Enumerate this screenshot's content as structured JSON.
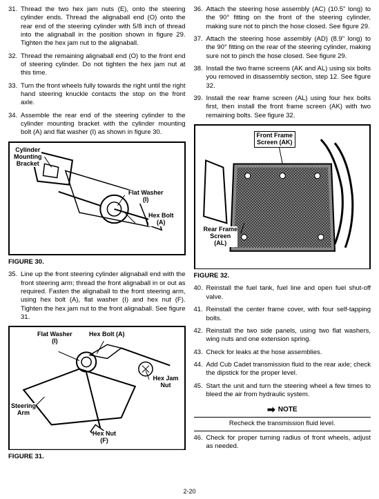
{
  "left": {
    "steps": [
      {
        "num": "31.",
        "text": "Thread the two hex jam nuts (E), onto the steering cylinder ends. Thread the alignaball end (O) onto the rear end of the steering cylinder with 5/8 inch of thread into the alignaball in the position shown in figure 29. Tighten the hex jam nut to the alignaball."
      },
      {
        "num": "32.",
        "text": "Thread the remaining alignaball end (O) to the front end of steering cylinder. Do not tighten the hex jam nut at this time."
      },
      {
        "num": "33.",
        "text": "Turn the front wheels fully towards the right until the right hand steering knuckle contacts the stop on the front axle."
      },
      {
        "num": "34.",
        "text": "Assemble the rear end of the steering cylinder to the cylinder mounting bracket with the cylinder mounting bolt (A) and flat washer (I) as shown in figure 30."
      }
    ],
    "fig30": {
      "caption": "FIGURE 30.",
      "lbl_cyl": "Cylinder\nMounting\nBracket",
      "lbl_washer": "Flat Washer\n(I)",
      "lbl_bolt": "Hex Bolt\n(A)"
    },
    "step35": {
      "num": "35.",
      "text": "Line up the front steering cylinder alignaball end with the front steering arm; thread the front alignaball in or out as required. Fasten the alignaball to the front steering arm, using hex bolt (A), flat washer (I) and hex nut (F). Tighten the hex jam nut to the front alignaball. See figure 31."
    },
    "fig31": {
      "caption": "FIGURE 31.",
      "lbl_washer": "Flat Washer\n(I)",
      "lbl_bolt": "Hex Bolt (A)",
      "lbl_jam": "Hex Jam\nNut",
      "lbl_arm": "Steering\nArm",
      "lbl_nut": "Hex Nut\n(F)"
    }
  },
  "right": {
    "steps_a": [
      {
        "num": "36.",
        "text": "Attach the steering hose assembly (AC) (10.5\" long) to the 90° fitting on the front of the steering cylinder, making sure not to pinch the hose closed. See figure 29."
      },
      {
        "num": "37.",
        "text": "Attach the steering hose assembly (AD) (8.9\" long) to the 90° fitting on the rear of the steering cylinder, making sure not to pinch the hose closed. See figure 29."
      },
      {
        "num": "38.",
        "text": "Install the two frame screens (AK and AL) using six bolts you removed in disassembly section, step 12. See figure 32."
      },
      {
        "num": "39.",
        "text": "Install the rear frame screen (AL) using four hex bolts first, then install the front frame screen (AK) with two remaining bolts. See figure 32."
      }
    ],
    "fig32": {
      "caption": "FIGURE 32.",
      "lbl_front": "Front Frame\nScreen (AK)",
      "lbl_rear": "Rear Frame\nScreen\n(AL)"
    },
    "steps_b": [
      {
        "num": "40.",
        "text": "Reinstall the fuel tank, fuel line and open fuel shut-off valve."
      },
      {
        "num": "41.",
        "text": "Reinstall the center frame cover, with four self-tapping bolts."
      },
      {
        "num": "42.",
        "text": "Reinstall the two side panels, using two flat washers, wing nuts and one extension spring."
      },
      {
        "num": "43.",
        "text": "Check for leaks at the hose assemblies."
      },
      {
        "num": "44.",
        "text": "Add Cub Cadet transmission fluid to the rear axle; check the dipstick for the proper level."
      },
      {
        "num": "45.",
        "text": "Start the unit and turn the steering wheel a few times to bleed the air from hydraulic system."
      }
    ],
    "note": {
      "title": "NOTE",
      "text": "Recheck the transmission fluid level."
    },
    "step46": {
      "num": "46.",
      "text": "Check for proper turning radius of front wheels, adjust as needed."
    }
  },
  "page": "2-20"
}
